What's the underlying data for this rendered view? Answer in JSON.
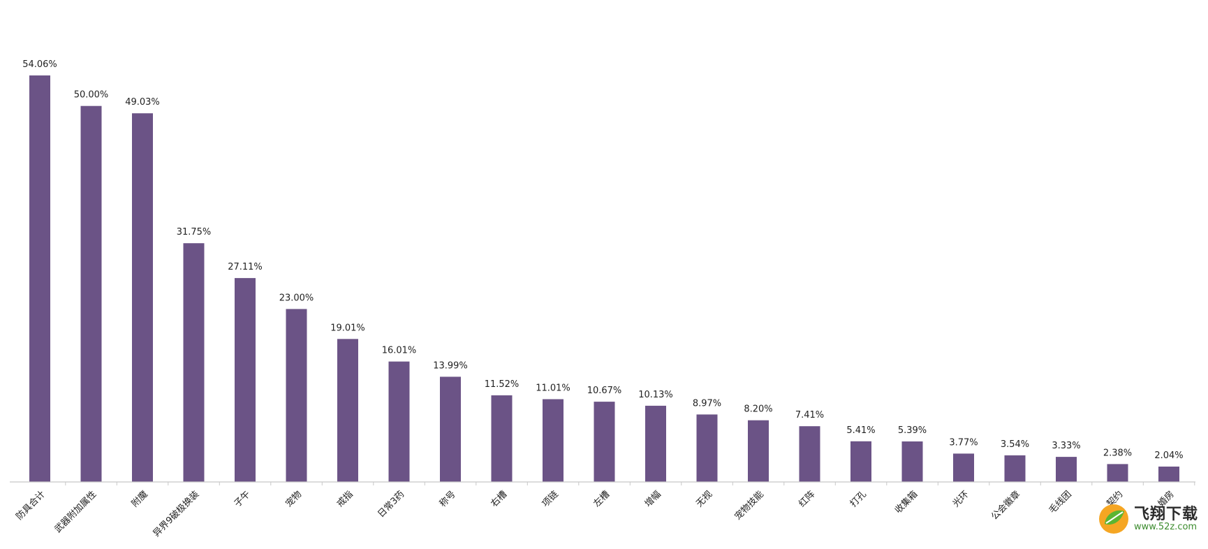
{
  "chart_data": {
    "type": "bar",
    "title": "",
    "xlabel": "",
    "ylabel": "",
    "ylim": [
      0,
      60
    ],
    "grid": false,
    "bar_color": "#6b5386",
    "categories": [
      "防具合计",
      "武器附加属性",
      "附魔",
      "异界9破极换装",
      "子午",
      "宠物",
      "戒指",
      "日常3药",
      "称号",
      "右槽",
      "项链",
      "左槽",
      "增幅",
      "无视",
      "宠物技能",
      "红阵",
      "打孔",
      "收集箱",
      "光环",
      "公会徽章",
      "毛线团",
      "契约",
      "婚房"
    ],
    "values": [
      54.06,
      50.0,
      49.03,
      31.75,
      27.11,
      23.0,
      19.01,
      16.01,
      13.99,
      11.52,
      11.01,
      10.67,
      10.13,
      8.97,
      8.2,
      7.41,
      5.41,
      5.39,
      3.77,
      3.54,
      3.33,
      2.38,
      2.04
    ],
    "value_labels": [
      "54.06%",
      "50.00%",
      "49.03%",
      "31.75%",
      "27.11%",
      "23.00%",
      "19.01%",
      "16.01%",
      "13.99%",
      "11.52%",
      "11.01%",
      "10.67%",
      "10.13%",
      "8.97%",
      "8.20%",
      "7.41%",
      "5.41%",
      "5.39%",
      "3.77%",
      "3.54%",
      "3.33%",
      "2.38%",
      "2.04%"
    ]
  },
  "watermark": {
    "brand": "飞翔下载",
    "url": "www.52z.com",
    "colors": {
      "leaf_green": "#5bb532",
      "leaf_orange": "#f5a623"
    }
  }
}
